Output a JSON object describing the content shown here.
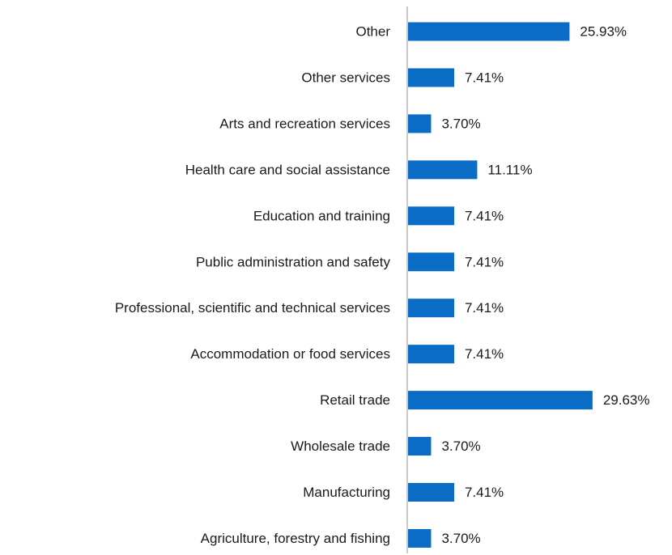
{
  "chart_data": {
    "type": "bar",
    "orientation": "horizontal",
    "categories": [
      "Other",
      "Other services",
      "Arts and recreation services",
      "Health care and social assistance",
      "Education and training",
      "Public administration and safety",
      "Professional, scientific and technical services",
      "Accommodation or food services",
      "Retail trade",
      "Wholesale trade",
      "Manufacturing",
      "Agriculture, forestry and fishing"
    ],
    "values": [
      25.93,
      7.41,
      3.7,
      11.11,
      7.41,
      7.41,
      7.41,
      7.41,
      29.63,
      3.7,
      7.41,
      3.7
    ],
    "value_labels": [
      "25.93%",
      "7.41%",
      "3.70%",
      "11.11%",
      "7.41%",
      "7.41%",
      "7.41%",
      "7.41%",
      "29.63%",
      "3.70%",
      "7.41%",
      "3.70%"
    ],
    "title": "",
    "xlabel": "",
    "ylabel": "",
    "grid": false,
    "legend": "none",
    "bar_color": "#0a6cc4",
    "axis_color": "#a6a6a6"
  }
}
